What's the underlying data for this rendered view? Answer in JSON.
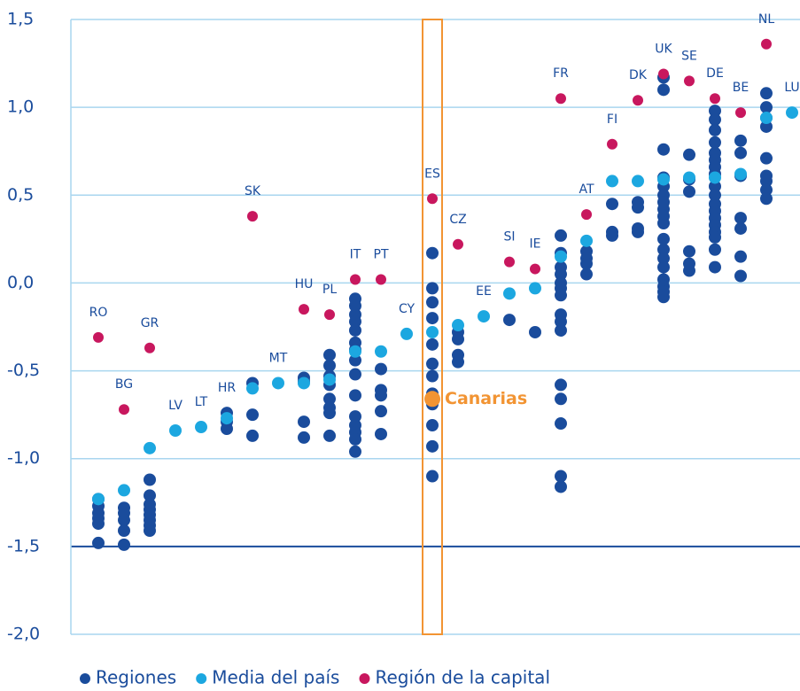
{
  "chart_data": {
    "type": "strip",
    "categories": [
      "RO",
      "BG",
      "GR",
      "LV",
      "LT",
      "HR",
      "SK",
      "MT",
      "HU",
      "PL",
      "IT",
      "PT",
      "CY",
      "ES",
      "CZ",
      "EE",
      "SI",
      "IE",
      "FR",
      "AT",
      "FI",
      "DK",
      "UK",
      "SE",
      "DE",
      "BE",
      "NL",
      "LU"
    ],
    "series": [
      {
        "name": "Regiones",
        "color": "#1a4c9c",
        "values": [
          [
            -1.23,
            -1.27,
            -1.31,
            -1.34,
            -1.37,
            -1.48
          ],
          [
            -1.28,
            -1.31,
            -1.35,
            -1.41,
            -1.49
          ],
          [
            -1.12,
            -1.21,
            -1.26,
            -1.29,
            -1.32,
            -1.35,
            -1.38,
            -1.41
          ],
          null,
          null,
          [
            -0.74,
            -0.79,
            -0.83
          ],
          [
            -0.57,
            -0.75,
            -0.87
          ],
          null,
          [
            -0.54,
            -0.56,
            -0.79,
            -0.88
          ],
          [
            -0.41,
            -0.47,
            -0.53,
            -0.58,
            -0.66,
            -0.71,
            -0.74,
            -0.87
          ],
          [
            -0.09,
            -0.13,
            -0.18,
            -0.22,
            -0.27,
            -0.34,
            -0.38,
            -0.44,
            -0.52,
            -0.64,
            -0.76,
            -0.81,
            -0.85,
            -0.89,
            -0.96
          ],
          [
            -0.49,
            -0.61,
            -0.64,
            -0.73,
            -0.86
          ],
          null,
          [
            0.17,
            -0.03,
            -0.11,
            -0.2,
            -0.35,
            -0.46,
            -0.53,
            -0.63,
            -0.69,
            -0.81,
            -0.93,
            -1.1
          ],
          [
            -0.28,
            -0.32,
            -0.41,
            -0.45
          ],
          null,
          [
            -0.21
          ],
          [
            -0.28
          ],
          [
            0.27,
            0.17,
            0.09,
            0.05,
            0.0,
            -0.03,
            -0.07,
            -0.18,
            -0.22,
            -0.27,
            -0.58,
            -0.66,
            -0.8,
            -1.1,
            -1.16
          ],
          [
            0.18,
            0.14,
            0.11,
            0.05
          ],
          [
            0.45,
            0.29,
            0.27
          ],
          [
            0.46,
            0.43,
            0.31,
            0.29
          ],
          [
            1.1,
            1.17,
            0.76,
            0.6,
            0.55,
            0.5,
            0.46,
            0.42,
            0.38,
            0.34,
            0.25,
            0.19,
            0.14,
            0.09,
            0.02,
            -0.02,
            -0.05,
            -0.08
          ],
          [
            0.73,
            0.59,
            0.52,
            0.18,
            0.11,
            0.07
          ],
          [
            0.98,
            0.93,
            0.87,
            0.8,
            0.74,
            0.7,
            0.66,
            0.62,
            0.55,
            0.5,
            0.45,
            0.41,
            0.37,
            0.33,
            0.29,
            0.26,
            0.19,
            0.09
          ],
          [
            0.81,
            0.74,
            0.61,
            0.37,
            0.31,
            0.15,
            0.04
          ],
          [
            1.08,
            1.0,
            0.94,
            0.89,
            0.71,
            0.61,
            0.58,
            0.53,
            0.48
          ],
          null
        ]
      },
      {
        "name": "Media del país",
        "color": "#1ca7e0",
        "values": [
          -1.23,
          -1.18,
          -0.94,
          -0.84,
          -0.82,
          -0.77,
          -0.6,
          -0.57,
          -0.57,
          -0.55,
          -0.39,
          -0.39,
          -0.29,
          -0.28,
          -0.24,
          -0.19,
          -0.06,
          -0.03,
          0.15,
          0.24,
          0.58,
          0.58,
          0.59,
          0.6,
          0.6,
          0.62,
          0.94,
          0.97
        ]
      },
      {
        "name": "Región de la capital",
        "color": "#c8175e",
        "values": [
          -0.31,
          -0.72,
          -0.37,
          null,
          null,
          null,
          0.38,
          null,
          -0.15,
          -0.18,
          0.02,
          0.02,
          null,
          0.48,
          0.22,
          null,
          0.12,
          0.08,
          1.05,
          0.39,
          0.79,
          1.04,
          1.19,
          1.15,
          1.05,
          0.97,
          1.36,
          null
        ]
      }
    ],
    "annotation": {
      "text": "Canarias",
      "category": "ES",
      "value": -0.66,
      "color": "#f29433"
    },
    "highlight": {
      "category": "ES",
      "color": "#f29433"
    },
    "ylim": [
      -2.0,
      1.5
    ],
    "yticks": [
      {
        "value": -2.0,
        "label": "-2,0"
      },
      {
        "value": -1.5,
        "label": "-1,5"
      },
      {
        "value": -1.0,
        "label": "-1,0"
      },
      {
        "value": -0.5,
        "label": "-0,5"
      },
      {
        "value": 0.0,
        "label": "0,0"
      },
      {
        "value": 0.5,
        "label": "0,5"
      },
      {
        "value": 1.0,
        "label": "1,0"
      },
      {
        "value": 1.5,
        "label": "1,5"
      }
    ],
    "xaxis_crosses": -1.5,
    "grid": true,
    "legend": "bottom"
  }
}
